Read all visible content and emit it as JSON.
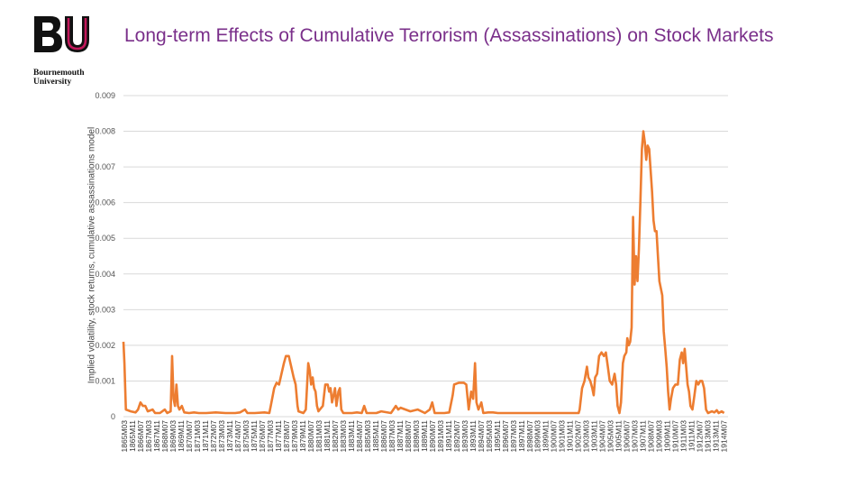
{
  "logo": {
    "letters": "BU",
    "name_line1": "Bournemouth",
    "name_line2": "University"
  },
  "colors": {
    "title": "#7a2f8a",
    "series": "#ed7d31",
    "grid": "#d9d9d9",
    "logo_accent": "#c2185b"
  },
  "chart_data": {
    "type": "line",
    "title": "Long-term Effects of Cumulative Terrorism (Assassinations) on Stock Markets",
    "xlabel": "",
    "ylabel": "Implied volatility, stock returns, cumulative assassinations model",
    "ylim": [
      0,
      0.009
    ],
    "yticks": [
      {
        "v": 0,
        "label": "0"
      },
      {
        "v": 0.001,
        "label": "0.001"
      },
      {
        "v": 0.002,
        "label": "0.002"
      },
      {
        "v": 0.003,
        "label": "0.003"
      },
      {
        "v": 0.004,
        "label": "0.004"
      },
      {
        "v": 0.005,
        "label": "0.005"
      },
      {
        "v": 0.006,
        "label": "0.006"
      },
      {
        "v": 0.007,
        "label": "0.007"
      },
      {
        "v": 0.008,
        "label": "0.008"
      },
      {
        "v": 0.009,
        "label": "0.009"
      }
    ],
    "grid": true,
    "legend": "none",
    "xtick_labels": [
      "1865M03",
      "1865M11",
      "1866M07",
      "1867M03",
      "1867M11",
      "1868M07",
      "1869M03",
      "1869M11",
      "1870M07",
      "1871M03",
      "1871M11",
      "1872M07",
      "1873M03",
      "1873M11",
      "1874M07",
      "1875M03",
      "1875M11",
      "1876M07",
      "1877M03",
      "1877M11",
      "1878M07",
      "1879M03",
      "1879M11",
      "1880M07",
      "1881M03",
      "1881M11",
      "1882M07",
      "1883M03",
      "1883M11",
      "1884M07",
      "1885M03",
      "1885M11",
      "1886M07",
      "1887M03",
      "1887M11",
      "1888M07",
      "1889M03",
      "1889M11",
      "1890M07",
      "1891M03",
      "1891M11",
      "1892M07",
      "1893M03",
      "1893M11",
      "1894M07",
      "1895M03",
      "1895M11",
      "1896M07",
      "1897M03",
      "1897M11",
      "1898M07",
      "1899M03",
      "1899M11",
      "1900M07",
      "1901M03",
      "1901M11",
      "1902M07",
      "1903M03",
      "1903M11",
      "1904M07",
      "1905M03",
      "1905M11",
      "1906M07",
      "1907M03",
      "1907M11",
      "1908M07",
      "1909M03",
      "1909M11",
      "1910M07",
      "1911M03",
      "1911M11",
      "1912M07",
      "1913M03",
      "1913M11",
      "1914M07"
    ],
    "series": [
      {
        "points": [
          [
            0.0,
            0.0021
          ],
          [
            0.2,
            0.0015
          ],
          [
            0.5,
            0.0002
          ],
          [
            1.5,
            0.00015
          ],
          [
            2.5,
            0.00012
          ],
          [
            3.0,
            0.0002
          ],
          [
            3.5,
            0.0004
          ],
          [
            4.0,
            0.0003
          ],
          [
            4.5,
            0.0003
          ],
          [
            5.0,
            0.00015
          ],
          [
            6.0,
            0.0002
          ],
          [
            6.5,
            0.0001
          ],
          [
            7.5,
            0.0001
          ],
          [
            8.5,
            0.0002
          ],
          [
            9.0,
            0.0001
          ],
          [
            9.7,
            0.00015
          ],
          [
            10.0,
            0.0017
          ],
          [
            10.3,
            0.0005
          ],
          [
            10.6,
            0.0003
          ],
          [
            10.9,
            0.0009
          ],
          [
            11.2,
            0.0003
          ],
          [
            11.5,
            0.0002
          ],
          [
            12.0,
            0.0003
          ],
          [
            12.5,
            0.00012
          ],
          [
            13.5,
            0.0001
          ],
          [
            14.5,
            0.00012
          ],
          [
            15.5,
            0.0001
          ],
          [
            17.0,
            0.0001
          ],
          [
            19.0,
            0.00012
          ],
          [
            21.0,
            0.0001
          ],
          [
            23.0,
            0.0001
          ],
          [
            24.0,
            0.00012
          ],
          [
            25.0,
            0.0002
          ],
          [
            25.5,
            0.0001
          ],
          [
            27.0,
            0.0001
          ],
          [
            29.0,
            0.00012
          ],
          [
            30.0,
            0.0001
          ],
          [
            30.3,
            0.0003
          ],
          [
            31.0,
            0.0008
          ],
          [
            31.5,
            0.00095
          ],
          [
            32.0,
            0.0009
          ],
          [
            32.5,
            0.0012
          ],
          [
            33.0,
            0.0015
          ],
          [
            33.4,
            0.0017
          ],
          [
            34.0,
            0.0017
          ],
          [
            34.5,
            0.0014
          ],
          [
            35.0,
            0.0011
          ],
          [
            35.4,
            0.0009
          ],
          [
            35.8,
            0.0003
          ],
          [
            36.0,
            0.00015
          ],
          [
            37.0,
            0.0001
          ],
          [
            37.5,
            0.0002
          ],
          [
            38.0,
            0.0015
          ],
          [
            38.3,
            0.0013
          ],
          [
            38.6,
            0.0009
          ],
          [
            38.9,
            0.0011
          ],
          [
            39.2,
            0.0008
          ],
          [
            39.5,
            0.0007
          ],
          [
            39.8,
            0.0003
          ],
          [
            40.1,
            0.00015
          ],
          [
            41.0,
            0.0003
          ],
          [
            41.5,
            0.0009
          ],
          [
            42.0,
            0.0009
          ],
          [
            42.3,
            0.0007
          ],
          [
            42.6,
            0.0008
          ],
          [
            42.9,
            0.0004
          ],
          [
            43.2,
            0.0006
          ],
          [
            43.5,
            0.0008
          ],
          [
            43.8,
            0.0003
          ],
          [
            44.2,
            0.0007
          ],
          [
            44.5,
            0.0008
          ],
          [
            44.8,
            0.0002
          ],
          [
            45.2,
            0.0001
          ],
          [
            47.0,
            0.0001
          ],
          [
            48.0,
            0.00012
          ],
          [
            49.0,
            0.0001
          ],
          [
            49.5,
            0.0003
          ],
          [
            50.0,
            0.0001
          ],
          [
            52.0,
            0.0001
          ],
          [
            53.0,
            0.00015
          ],
          [
            55.0,
            0.0001
          ],
          [
            56.0,
            0.0003
          ],
          [
            56.5,
            0.0002
          ],
          [
            57.0,
            0.00025
          ],
          [
            58.0,
            0.0002
          ],
          [
            59.0,
            0.00015
          ],
          [
            60.5,
            0.0002
          ],
          [
            62.0,
            0.0001
          ],
          [
            63.0,
            0.0002
          ],
          [
            63.5,
            0.0004
          ],
          [
            64.0,
            0.0001
          ],
          [
            66.0,
            0.0001
          ],
          [
            67.0,
            0.00012
          ],
          [
            67.7,
            0.0006
          ],
          [
            68.0,
            0.0009
          ],
          [
            69.0,
            0.00095
          ],
          [
            70.0,
            0.00095
          ],
          [
            70.5,
            0.0009
          ],
          [
            71.0,
            0.0002
          ],
          [
            71.5,
            0.0007
          ],
          [
            71.9,
            0.0005
          ],
          [
            72.3,
            0.0015
          ],
          [
            72.6,
            0.0004
          ],
          [
            73.0,
            0.0002
          ],
          [
            73.6,
            0.0004
          ],
          [
            74.0,
            0.0001
          ],
          [
            75.0,
            0.00012
          ],
          [
            76.0,
            0.00012
          ],
          [
            77.0,
            0.0001
          ],
          [
            80.0,
            0.0001
          ],
          [
            82.0,
            0.0001
          ],
          [
            84.0,
            0.0001
          ],
          [
            86.0,
            0.0001
          ],
          [
            88.0,
            0.0001
          ],
          [
            90.0,
            0.0001
          ],
          [
            92.0,
            0.0001
          ],
          [
            93.6,
            0.0001
          ],
          [
            93.8,
            0.0002
          ],
          [
            94.3,
            0.0008
          ],
          [
            94.8,
            0.001
          ],
          [
            95.3,
            0.0014
          ],
          [
            95.6,
            0.0011
          ],
          [
            96.0,
            0.001
          ],
          [
            96.4,
            0.0008
          ],
          [
            96.7,
            0.0006
          ],
          [
            97.0,
            0.0011
          ],
          [
            97.4,
            0.0012
          ],
          [
            97.8,
            0.0017
          ],
          [
            98.3,
            0.0018
          ],
          [
            98.8,
            0.0017
          ],
          [
            99.2,
            0.0018
          ],
          [
            99.6,
            0.0014
          ],
          [
            100.0,
            0.001
          ],
          [
            100.5,
            0.0009
          ],
          [
            101.0,
            0.0012
          ],
          [
            101.3,
            0.0009
          ],
          [
            101.6,
            0.0003
          ],
          [
            102.0,
            0.0001
          ],
          [
            102.3,
            0.0004
          ],
          [
            102.7,
            0.0015
          ],
          [
            103.0,
            0.0017
          ],
          [
            103.4,
            0.0018
          ],
          [
            103.6,
            0.0022
          ],
          [
            103.9,
            0.002
          ],
          [
            104.2,
            0.0021
          ],
          [
            104.5,
            0.0025
          ],
          [
            104.8,
            0.0056
          ],
          [
            105.1,
            0.0037
          ],
          [
            105.4,
            0.0045
          ],
          [
            105.7,
            0.0038
          ],
          [
            106.0,
            0.0047
          ],
          [
            106.3,
            0.006
          ],
          [
            106.6,
            0.0075
          ],
          [
            106.9,
            0.008
          ],
          [
            107.2,
            0.0077
          ],
          [
            107.5,
            0.0072
          ],
          [
            107.8,
            0.0076
          ],
          [
            108.1,
            0.0075
          ],
          [
            108.4,
            0.0069
          ],
          [
            108.7,
            0.0063
          ],
          [
            109.0,
            0.0055
          ],
          [
            109.3,
            0.0052
          ],
          [
            109.6,
            0.0052
          ],
          [
            109.9,
            0.0045
          ],
          [
            110.2,
            0.0038
          ],
          [
            110.5,
            0.0036
          ],
          [
            110.8,
            0.0034
          ],
          [
            111.1,
            0.0024
          ],
          [
            111.4,
            0.0019
          ],
          [
            111.7,
            0.0014
          ],
          [
            112.0,
            0.0007
          ],
          [
            112.3,
            0.0002
          ],
          [
            112.6,
            0.0005
          ],
          [
            113.0,
            0.0008
          ],
          [
            113.5,
            0.0009
          ],
          [
            114.0,
            0.0009
          ],
          [
            114.4,
            0.0016
          ],
          [
            114.8,
            0.0018
          ],
          [
            115.1,
            0.0015
          ],
          [
            115.4,
            0.0019
          ],
          [
            115.7,
            0.0014
          ],
          [
            116.0,
            0.0009
          ],
          [
            116.3,
            0.0007
          ],
          [
            116.6,
            0.0003
          ],
          [
            117.0,
            0.0002
          ],
          [
            117.4,
            0.0006
          ],
          [
            117.8,
            0.001
          ],
          [
            118.2,
            0.0009
          ],
          [
            118.6,
            0.001
          ],
          [
            119.0,
            0.001
          ],
          [
            119.4,
            0.0008
          ],
          [
            119.8,
            0.0002
          ],
          [
            120.2,
            0.0001
          ],
          [
            121.0,
            0.00015
          ],
          [
            121.5,
            0.00012
          ],
          [
            122.0,
            0.00018
          ],
          [
            122.4,
            0.0001
          ],
          [
            123.0,
            0.00015
          ],
          [
            123.5,
            0.0001
          ]
        ]
      }
    ]
  }
}
